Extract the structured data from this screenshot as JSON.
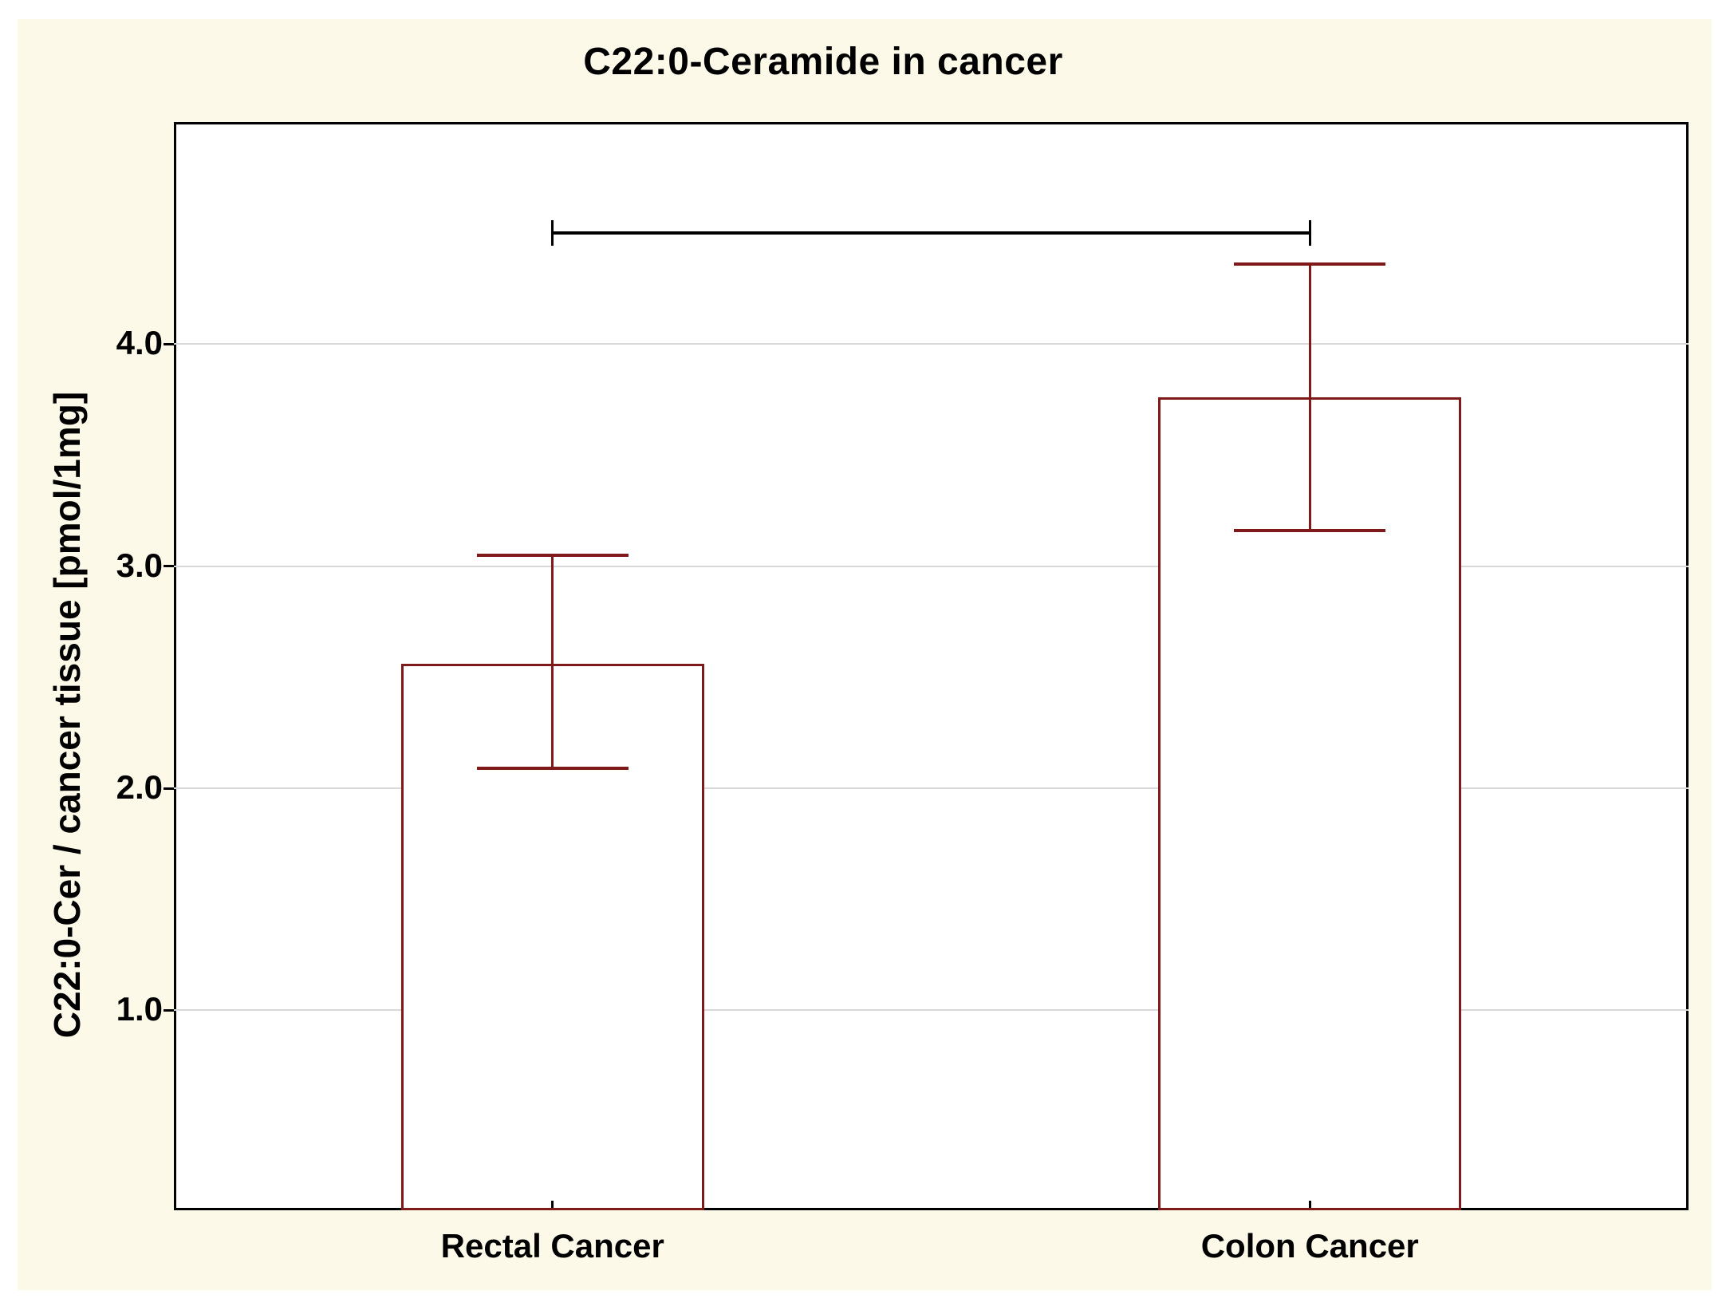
{
  "chart_data": {
    "type": "bar",
    "title": "C22:0-Ceramide in cancer",
    "ylabel": "C22:0-Cer / cancer tissue [pmol/1mg]",
    "xlabel": "",
    "categories": [
      "Rectal Cancer",
      "Colon Cancer"
    ],
    "values": [
      2.56,
      3.76
    ],
    "error_bars": {
      "upper": [
        3.05,
        4.36
      ],
      "lower": [
        2.09,
        3.16
      ]
    },
    "significance_bracket": {
      "from_category": "Rectal Cancer",
      "to_category": "Colon Cancer",
      "value": 4.5
    },
    "ylim": [
      0.1,
      5.0
    ],
    "yticks": [
      {
        "value": 1.0,
        "label": "1.0"
      },
      {
        "value": 2.0,
        "label": "2.0"
      },
      {
        "value": 3.0,
        "label": "3.0"
      },
      {
        "value": 4.0,
        "label": "4.0"
      }
    ],
    "grid": "horizontal",
    "legend": "none",
    "layout_hints": {
      "bar_width_frac": 0.2,
      "cap_width_frac": 0.1
    },
    "colors": {
      "bar_fill": "#FFFFFF",
      "bar_outline": "#801A1A",
      "error_bar": "#801A1A",
      "figure_background": "#FDF9E9",
      "plot_background": "#FFFFFF",
      "gridline": "#D9D9D9",
      "frame": "#000000",
      "bracket": "#000000",
      "text": "#000000"
    }
  }
}
